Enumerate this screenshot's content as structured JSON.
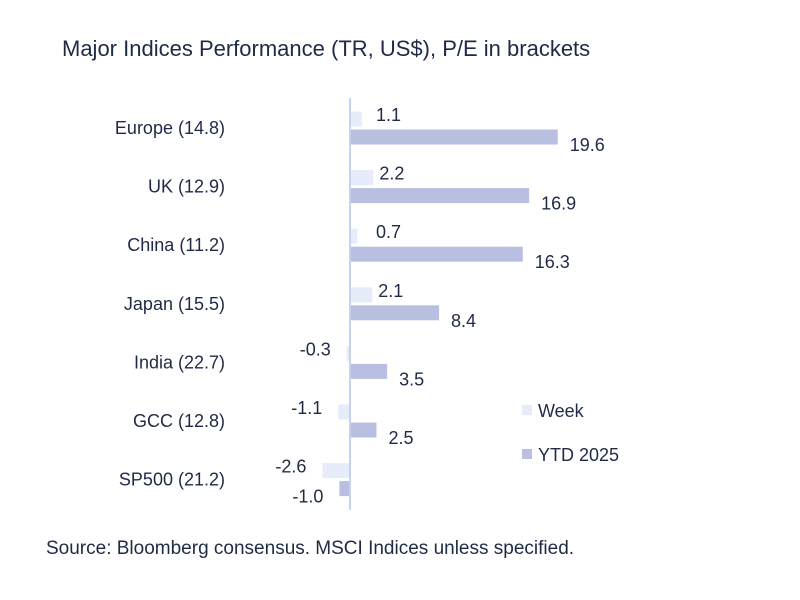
{
  "chart_data": {
    "type": "bar",
    "orientation": "horizontal",
    "title": "Major Indices Performance (TR, US$), P/E in brackets",
    "source": "Source: Bloomberg consensus. MSCI Indices unless specified.",
    "categories": [
      "Europe (14.8)",
      "UK (12.9)",
      "China (11.2)",
      "Japan (15.5)",
      "India (22.7)",
      "GCC (12.8)",
      "SP500 (21.2)"
    ],
    "series": [
      {
        "name": "Week",
        "color": "#e6ecfa",
        "values": [
          1.1,
          2.2,
          0.7,
          2.1,
          -0.3,
          -1.1,
          -2.6
        ]
      },
      {
        "name": "YTD 2025",
        "color": "#b9bfe0",
        "values": [
          19.6,
          16.9,
          16.3,
          8.4,
          3.5,
          2.5,
          -1.0
        ]
      }
    ],
    "value_labels": {
      "Week": [
        "1.1",
        "2.2",
        "0.7",
        "2.1",
        "-0.3",
        "-1.1",
        "-2.6"
      ],
      "YTD 2025": [
        "19.6",
        "16.9",
        "16.3",
        "8.4",
        "3.5",
        "2.5",
        "-1.0"
      ]
    },
    "legend_position": "right",
    "axis_color": "#c7d3ec",
    "grid": false
  }
}
